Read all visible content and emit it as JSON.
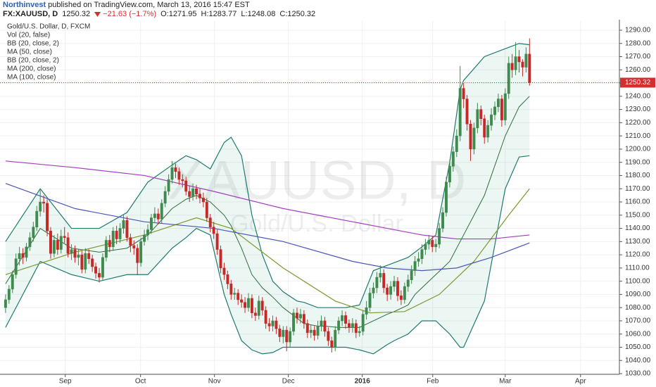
{
  "publisher": "Northinvest",
  "published": "published on TradingView.com, March 13, 2016 15:47 EST",
  "chart_data": {
    "type": "candlestick",
    "symbol": "FX:XAUUSD, D",
    "change_label": "−21.63 (−1.7%)",
    "ohlc_labels": [
      "O:",
      "H:",
      "L:",
      "C:"
    ],
    "instrument": "Gold/U.S. Dollar, D, FXCM",
    "studies": [
      "Vol (20, false)",
      "BB (20, close, 2)",
      "MA (50, close)",
      "BB (20, close, 2)",
      "MA (200, close)",
      "MA (100, close)"
    ],
    "watermark": [
      "XAUUSD, D",
      "Gold/U.S. Dollar"
    ],
    "up_color": "#3f8a4e",
    "down_color": "#c62828",
    "last_price_color": "#d32f2f",
    "grid": true,
    "xlim": [
      -1.6,
      176.9
    ],
    "xticks": [
      {
        "value": 17.2,
        "label": "Sep"
      },
      {
        "value": 38.9,
        "label": "Oct"
      },
      {
        "value": 60.2,
        "label": "Nov"
      },
      {
        "value": 81.5,
        "label": "Dec"
      },
      {
        "value": 102.8,
        "label": "2016"
      },
      {
        "value": 123.1,
        "label": "Feb"
      },
      {
        "value": 144,
        "label": "Mar"
      },
      {
        "value": 165.7,
        "label": "Apr"
      }
    ],
    "ylim": [
      1029.5,
      1296.9
    ],
    "yticks": [
      {
        "value": 1030,
        "label": "1030.00"
      },
      {
        "value": 1040,
        "label": "1040.00"
      },
      {
        "value": 1050,
        "label": "1050.00"
      },
      {
        "value": 1060,
        "label": "1060.00"
      },
      {
        "value": 1070,
        "label": "1070.00"
      },
      {
        "value": 1080,
        "label": "1080.00"
      },
      {
        "value": 1090,
        "label": "1090.00"
      },
      {
        "value": 1100,
        "label": "1100.00"
      },
      {
        "value": 1110,
        "label": "1110.00"
      },
      {
        "value": 1120,
        "label": "1120.00"
      },
      {
        "value": 1130,
        "label": "1130.00"
      },
      {
        "value": 1140,
        "label": "1140.00"
      },
      {
        "value": 1150,
        "label": "1150.00"
      },
      {
        "value": 1160,
        "label": "1160.00"
      },
      {
        "value": 1170,
        "label": "1170.00"
      },
      {
        "value": 1180,
        "label": "1180.00"
      },
      {
        "value": 1190,
        "label": "1190.00"
      },
      {
        "value": 1200,
        "label": "1200.00"
      },
      {
        "value": 1210,
        "label": "1210.00"
      },
      {
        "value": 1220,
        "label": "1220.00"
      },
      {
        "value": 1230,
        "label": "1230.00"
      },
      {
        "value": 1240,
        "label": "1240.00"
      },
      {
        "value": 1250,
        "label": "1250.00"
      },
      {
        "value": 1260,
        "label": "1260.00"
      },
      {
        "value": 1270,
        "label": "1270.00"
      },
      {
        "value": 1280,
        "label": "1280.00"
      },
      {
        "value": 1290,
        "label": "1290.00"
      }
    ],
    "open": [
      1080,
      1086,
      1094,
      1105,
      1117,
      1121,
      1118,
      1126,
      1133,
      1141,
      1153,
      1160,
      1159,
      1138,
      1121,
      1131,
      1124,
      1134,
      1133,
      1121,
      1124,
      1118,
      1120,
      1109,
      1121,
      1117,
      1111,
      1106,
      1103,
      1118,
      1131,
      1126,
      1138,
      1132,
      1140,
      1146,
      1133,
      1127,
      1125,
      1114,
      1130,
      1135,
      1139,
      1148,
      1151,
      1147,
      1159,
      1168,
      1177,
      1186,
      1183,
      1177,
      1176,
      1168,
      1164,
      1170,
      1166,
      1163,
      1160,
      1148,
      1141,
      1136,
      1124,
      1110,
      1105,
      1098,
      1090,
      1091,
      1086,
      1084,
      1080,
      1087,
      1076,
      1074,
      1085,
      1078,
      1068,
      1066,
      1070,
      1064,
      1058,
      1063,
      1054,
      1062,
      1076,
      1072,
      1075,
      1068,
      1061,
      1063,
      1059,
      1066,
      1070,
      1062,
      1055,
      1050,
      1063,
      1070,
      1074,
      1068,
      1065,
      1068,
      1061,
      1062,
      1075,
      1080,
      1091,
      1095,
      1103,
      1106,
      1095,
      1090,
      1096,
      1100,
      1089,
      1086,
      1096,
      1101,
      1108,
      1115,
      1117,
      1124,
      1128,
      1131,
      1126,
      1128,
      1140,
      1152,
      1175,
      1187,
      1198,
      1210,
      1246,
      1238,
      1219,
      1200,
      1216,
      1230,
      1223,
      1209,
      1218,
      1226,
      1232,
      1238,
      1222,
      1242,
      1265,
      1260,
      1270,
      1266,
      1262,
      1271.95
    ],
    "high": [
      1090,
      1097,
      1108,
      1121,
      1126,
      1125,
      1129,
      1137,
      1145,
      1157,
      1169,
      1165,
      1162,
      1141,
      1135,
      1136,
      1139,
      1141,
      1137,
      1128,
      1127,
      1124,
      1123,
      1125,
      1124,
      1120,
      1114,
      1110,
      1121,
      1134,
      1135,
      1141,
      1142,
      1144,
      1150,
      1149,
      1136,
      1131,
      1128,
      1133,
      1139,
      1143,
      1151,
      1156,
      1155,
      1162,
      1172,
      1181,
      1191,
      1189,
      1186,
      1181,
      1179,
      1172,
      1174,
      1173,
      1170,
      1167,
      1163,
      1151,
      1145,
      1139,
      1127,
      1114,
      1108,
      1101,
      1095,
      1094,
      1090,
      1088,
      1091,
      1090,
      1080,
      1089,
      1088,
      1081,
      1072,
      1074,
      1073,
      1067,
      1066,
      1066,
      1065,
      1079,
      1080,
      1079,
      1078,
      1071,
      1067,
      1066,
      1070,
      1074,
      1073,
      1065,
      1058,
      1066,
      1073,
      1078,
      1077,
      1071,
      1072,
      1071,
      1066,
      1078,
      1085,
      1095,
      1099,
      1107,
      1112,
      1109,
      1098,
      1100,
      1104,
      1103,
      1093,
      1099,
      1105,
      1112,
      1119,
      1122,
      1128,
      1132,
      1135,
      1134,
      1132,
      1144,
      1156,
      1179,
      1192,
      1202,
      1215,
      1263,
      1250,
      1241,
      1222,
      1220,
      1235,
      1233,
      1226,
      1222,
      1231,
      1236,
      1242,
      1241,
      1246,
      1270,
      1272,
      1281,
      1275,
      1268,
      1277,
      1283.77
    ],
    "low": [
      1076,
      1083,
      1091,
      1102,
      1112,
      1113,
      1115,
      1123,
      1130,
      1138,
      1149,
      1152,
      1134,
      1117,
      1118,
      1120,
      1121,
      1129,
      1118,
      1116,
      1114,
      1112,
      1106,
      1106,
      1113,
      1107,
      1102,
      1099,
      1101,
      1115,
      1122,
      1123,
      1128,
      1129,
      1136,
      1130,
      1122,
      1120,
      1105,
      1111,
      1127,
      1131,
      1136,
      1144,
      1143,
      1144,
      1156,
      1165,
      1174,
      1178,
      1173,
      1171,
      1165,
      1160,
      1161,
      1162,
      1159,
      1156,
      1145,
      1137,
      1132,
      1120,
      1106,
      1101,
      1094,
      1086,
      1086,
      1082,
      1080,
      1076,
      1077,
      1072,
      1070,
      1071,
      1074,
      1064,
      1062,
      1062,
      1060,
      1054,
      1053,
      1047,
      1050,
      1059,
      1068,
      1068,
      1064,
      1057,
      1057,
      1055,
      1056,
      1062,
      1058,
      1051,
      1046,
      1047,
      1060,
      1066,
      1064,
      1061,
      1061,
      1057,
      1058,
      1059,
      1071,
      1077,
      1087,
      1091,
      1099,
      1091,
      1085,
      1086,
      1092,
      1085,
      1082,
      1083,
      1092,
      1098,
      1104,
      1111,
      1113,
      1120,
      1124,
      1122,
      1122,
      1125,
      1137,
      1149,
      1171,
      1183,
      1194,
      1206,
      1231,
      1214,
      1191,
      1196,
      1212,
      1218,
      1204,
      1205,
      1214,
      1222,
      1228,
      1217,
      1218,
      1238,
      1254,
      1256,
      1258,
      1255,
      1258,
      1248.08
    ],
    "close": [
      1086,
      1094,
      1105,
      1117,
      1121,
      1118,
      1126,
      1133,
      1141,
      1153,
      1160,
      1159,
      1138,
      1121,
      1131,
      1124,
      1134,
      1133,
      1121,
      1124,
      1118,
      1120,
      1109,
      1121,
      1117,
      1111,
      1106,
      1103,
      1118,
      1131,
      1126,
      1138,
      1132,
      1140,
      1146,
      1133,
      1127,
      1125,
      1114,
      1130,
      1135,
      1139,
      1148,
      1151,
      1147,
      1159,
      1168,
      1177,
      1186,
      1183,
      1177,
      1176,
      1168,
      1164,
      1170,
      1166,
      1163,
      1160,
      1148,
      1141,
      1136,
      1124,
      1110,
      1105,
      1098,
      1090,
      1091,
      1086,
      1084,
      1080,
      1087,
      1076,
      1074,
      1085,
      1078,
      1068,
      1066,
      1070,
      1064,
      1058,
      1063,
      1054,
      1062,
      1076,
      1072,
      1075,
      1068,
      1061,
      1063,
      1059,
      1066,
      1070,
      1062,
      1055,
      1050,
      1063,
      1070,
      1074,
      1068,
      1065,
      1068,
      1061,
      1062,
      1075,
      1080,
      1091,
      1095,
      1103,
      1106,
      1095,
      1090,
      1096,
      1100,
      1089,
      1086,
      1096,
      1101,
      1108,
      1115,
      1117,
      1124,
      1128,
      1131,
      1126,
      1128,
      1140,
      1152,
      1175,
      1187,
      1198,
      1210,
      1246,
      1238,
      1219,
      1200,
      1216,
      1230,
      1223,
      1209,
      1218,
      1226,
      1232,
      1238,
      1222,
      1242,
      1265,
      1260,
      1270,
      1266,
      1262,
      1271.95,
      1250.32
    ],
    "bands": {
      "color": "#1f7a6e",
      "fill": "rgba(120,190,170,0.14)",
      "middle_color": "#2e6b3c",
      "x": [
        0,
        10,
        19,
        27,
        35,
        41,
        48,
        52,
        55,
        59,
        63,
        65,
        68,
        71,
        74,
        77,
        80,
        84,
        86,
        90,
        92,
        96,
        98,
        102,
        106,
        110,
        112,
        116,
        118,
        120,
        124,
        128,
        131,
        132,
        138,
        144,
        148,
        151
      ],
      "upper": [
        1130,
        1170,
        1140,
        1140,
        1152,
        1175,
        1188,
        1195,
        1192,
        1185,
        1205,
        1209,
        1195,
        1150,
        1120,
        1100,
        1092,
        1085,
        1084,
        1080,
        1080,
        1080,
        1080,
        1082,
        1108,
        1112,
        1114,
        1118,
        1122,
        1126,
        1135,
        1190,
        1245,
        1252,
        1270,
        1276,
        1280,
        1279
      ],
      "lower": [
        1065,
        1115,
        1105,
        1100,
        1105,
        1105,
        1125,
        1133,
        1140,
        1135,
        1090,
        1075,
        1055,
        1048,
        1045,
        1046,
        1050,
        1050,
        1050,
        1050,
        1050,
        1050,
        1050,
        1048,
        1045,
        1052,
        1055,
        1060,
        1065,
        1070,
        1070,
        1060,
        1050,
        1050,
        1085,
        1170,
        1194,
        1195
      ],
      "middle": [
        1098,
        1140,
        1125,
        1122,
        1125,
        1135,
        1155,
        1162,
        1165,
        1160,
        1150,
        1142,
        1125,
        1105,
        1095,
        1088,
        1080,
        1072,
        1068,
        1066,
        1066,
        1065,
        1065,
        1065,
        1070,
        1075,
        1077,
        1082,
        1090,
        1095,
        1105,
        1115,
        1130,
        1135,
        1165,
        1210,
        1232,
        1240
      ]
    },
    "lines": [
      {
        "color": "#7a9a2e",
        "x": [
          0,
          20,
          40,
          55,
          65,
          80,
          95,
          105,
          115,
          125,
          135,
          145,
          151
        ],
        "values": [
          1105,
          1122,
          1135,
          1148,
          1140,
          1110,
          1085,
          1076,
          1077,
          1090,
          1115,
          1150,
          1170
        ]
      },
      {
        "color": "#4a55b8",
        "x": [
          0,
          20,
          40,
          60,
          80,
          100,
          110,
          120,
          130,
          140,
          151
        ],
        "values": [
          1174,
          1155,
          1145,
          1140,
          1130,
          1115,
          1110,
          1108,
          1110,
          1118,
          1129
        ]
      },
      {
        "color": "#a43dc0",
        "x": [
          0,
          20,
          40,
          60,
          80,
          100,
          110,
          120,
          130,
          140,
          151
        ],
        "values": [
          1191,
          1186,
          1180,
          1168,
          1155,
          1145,
          1140,
          1135,
          1132,
          1132,
          1135
        ]
      }
    ]
  }
}
